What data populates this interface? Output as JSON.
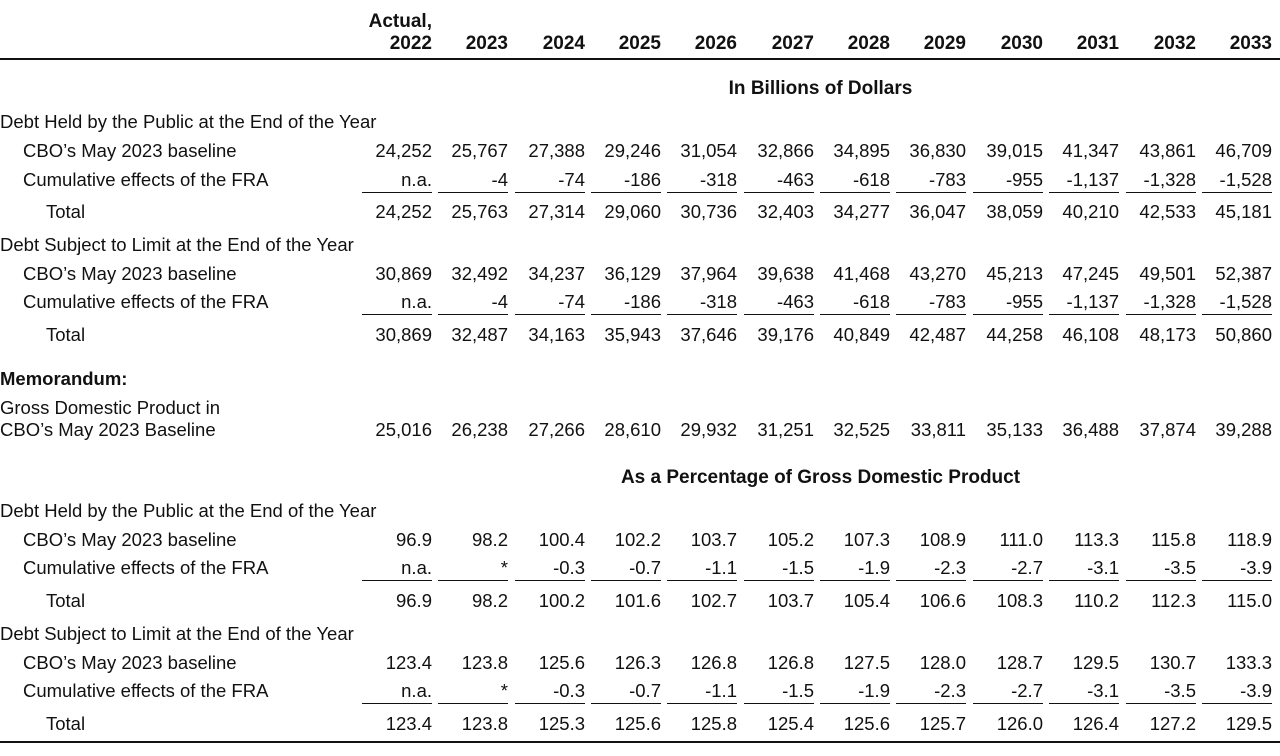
{
  "columns": [
    {
      "line1": "Actual,",
      "line2": "2022"
    },
    {
      "line1": "",
      "line2": "2023"
    },
    {
      "line1": "",
      "line2": "2024"
    },
    {
      "line1": "",
      "line2": "2025"
    },
    {
      "line1": "",
      "line2": "2026"
    },
    {
      "line1": "",
      "line2": "2027"
    },
    {
      "line1": "",
      "line2": "2028"
    },
    {
      "line1": "",
      "line2": "2029"
    },
    {
      "line1": "",
      "line2": "2030"
    },
    {
      "line1": "",
      "line2": "2031"
    },
    {
      "line1": "",
      "line2": "2032"
    },
    {
      "line1": "",
      "line2": "2033"
    }
  ],
  "dollars": {
    "title": "In Billions of Dollars",
    "held": {
      "heading": "Debt Held by the Public at the End of the Year",
      "baseline": {
        "label": "CBO’s May 2023 baseline",
        "values": [
          "24,252",
          "25,767",
          "27,388",
          "29,246",
          "31,054",
          "32,866",
          "34,895",
          "36,830",
          "39,015",
          "41,347",
          "43,861",
          "46,709"
        ]
      },
      "fra": {
        "label": "Cumulative effects of the FRA",
        "values": [
          "n.a.",
          "-4",
          "-74",
          "-186",
          "-318",
          "-463",
          "-618",
          "-783",
          "-955",
          "-1,137",
          "-1,328",
          "-1,528"
        ]
      },
      "total": {
        "label": "Total",
        "values": [
          "24,252",
          "25,763",
          "27,314",
          "29,060",
          "30,736",
          "32,403",
          "34,277",
          "36,047",
          "38,059",
          "40,210",
          "42,533",
          "45,181"
        ]
      }
    },
    "limit": {
      "heading": "Debt Subject to Limit at the End of the Year",
      "baseline": {
        "label": "CBO’s May 2023 baseline",
        "values": [
          "30,869",
          "32,492",
          "34,237",
          "36,129",
          "37,964",
          "39,638",
          "41,468",
          "43,270",
          "45,213",
          "47,245",
          "49,501",
          "52,387"
        ]
      },
      "fra": {
        "label": "Cumulative effects of the FRA",
        "values": [
          "n.a.",
          "-4",
          "-74",
          "-186",
          "-318",
          "-463",
          "-618",
          "-783",
          "-955",
          "-1,137",
          "-1,328",
          "-1,528"
        ]
      },
      "total": {
        "label": "Total",
        "values": [
          "30,869",
          "32,487",
          "34,163",
          "35,943",
          "37,646",
          "39,176",
          "40,849",
          "42,487",
          "44,258",
          "46,108",
          "48,173",
          "50,860"
        ]
      }
    }
  },
  "memo": {
    "heading": "Memorandum:",
    "gdp": {
      "label_line1": "Gross Domestic Product in",
      "label_line2": "CBO’s May 2023 Baseline",
      "values": [
        "25,016",
        "26,238",
        "27,266",
        "28,610",
        "29,932",
        "31,251",
        "32,525",
        "33,811",
        "35,133",
        "36,488",
        "37,874",
        "39,288"
      ]
    }
  },
  "percent": {
    "title": "As a Percentage of Gross Domestic Product",
    "held": {
      "heading": "Debt Held by the Public at the End of the Year",
      "baseline": {
        "label": "CBO’s May 2023 baseline",
        "values": [
          "96.9",
          "98.2",
          "100.4",
          "102.2",
          "103.7",
          "105.2",
          "107.3",
          "108.9",
          "111.0",
          "113.3",
          "115.8",
          "118.9"
        ]
      },
      "fra": {
        "label": "Cumulative effects of the FRA",
        "values": [
          "n.a.",
          "*",
          "-0.3",
          "-0.7",
          "-1.1",
          "-1.5",
          "-1.9",
          "-2.3",
          "-2.7",
          "-3.1",
          "-3.5",
          "-3.9"
        ]
      },
      "total": {
        "label": "Total",
        "values": [
          "96.9",
          "98.2",
          "100.2",
          "101.6",
          "102.7",
          "103.7",
          "105.4",
          "106.6",
          "108.3",
          "110.2",
          "112.3",
          "115.0"
        ]
      }
    },
    "limit": {
      "heading": "Debt Subject to Limit at the End of the Year",
      "baseline": {
        "label": "CBO’s May 2023 baseline",
        "values": [
          "123.4",
          "123.8",
          "125.6",
          "126.3",
          "126.8",
          "126.8",
          "127.5",
          "128.0",
          "128.7",
          "129.5",
          "130.7",
          "133.3"
        ]
      },
      "fra": {
        "label": "Cumulative effects of the FRA",
        "values": [
          "n.a.",
          "*",
          "-0.3",
          "-0.7",
          "-1.1",
          "-1.5",
          "-1.9",
          "-2.3",
          "-2.7",
          "-3.1",
          "-3.5",
          "-3.9"
        ]
      },
      "total": {
        "label": "Total",
        "values": [
          "123.4",
          "123.8",
          "125.3",
          "125.6",
          "125.8",
          "125.4",
          "125.6",
          "125.7",
          "126.0",
          "126.4",
          "127.2",
          "129.5"
        ]
      }
    }
  }
}
